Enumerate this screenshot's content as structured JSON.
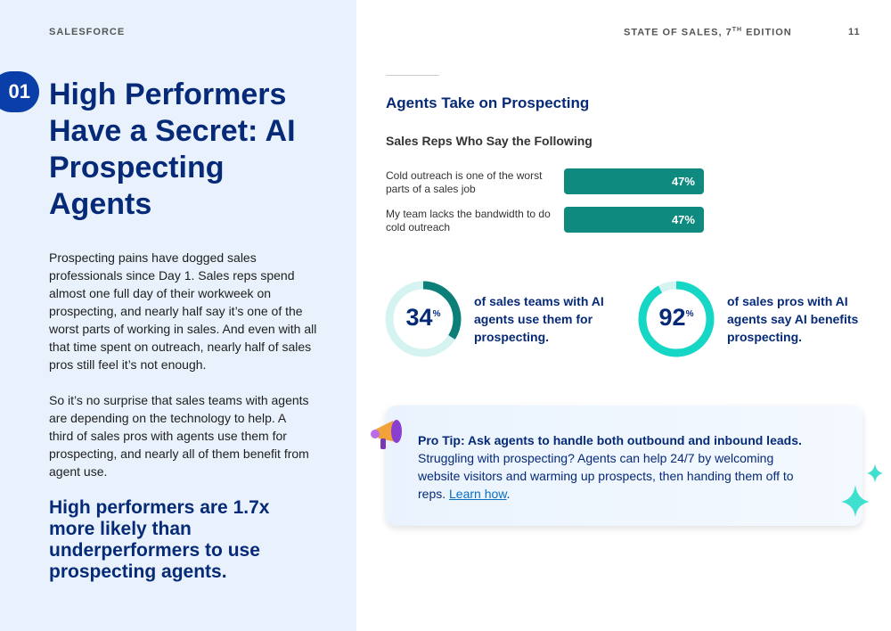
{
  "header": {
    "brand": "SALESFORCE",
    "edition": "STATE OF SALES, 7",
    "edition_sup": "TH",
    "edition_end": " EDITION",
    "page": "11"
  },
  "section": {
    "number": "01",
    "title": "High Performers Have a Secret: AI Prospecting Agents",
    "paragraphs": [
      "Prospecting pains have dogged sales professionals since Day 1. Sales reps spend almost one full day of their workweek on prospecting, and nearly half say it’s one of the worst parts of working in sales. And even with all that time spent on outreach, nearly half of sales pros still feel it’s not enough.",
      "So it’s no surprise that sales teams with agents are depending on the technology to help. A third of sales pros with agents use them for prospecting, and nearly all of them benefit from agent use."
    ],
    "highlight": "High performers are 1.7x more likely than underperformers to use prospecting agents."
  },
  "panel_title": "Agents Take on Prospecting",
  "chart_data": {
    "type": "bar",
    "orientation": "horizontal",
    "title": "Sales Reps Who Say the Following",
    "categories": [
      "Cold outreach is one of the worst parts of a sales job",
      "My team lacks the bandwidth to do cold outreach"
    ],
    "values": [
      47,
      47
    ],
    "value_labels": [
      "47%",
      "47%"
    ],
    "color": "#0e8a7f"
  },
  "stats": [
    {
      "value": 34,
      "unit": "%",
      "text": "of sales teams with AI agents use them for prospecting.",
      "color": "#0b7f78"
    },
    {
      "value": 92,
      "unit": "%",
      "text": "of sales pros with AI agents say AI benefits prospecting.",
      "color": "#16d6c6"
    }
  ],
  "tip": {
    "title": "Pro Tip: Ask agents to handle both outbound and inbound leads.",
    "body": "Struggling with prospecting? Agents can help 24/7 by welcoming website visitors and warming up prospects, then handing them off to reps. ",
    "link": "Learn how",
    "end": "."
  }
}
